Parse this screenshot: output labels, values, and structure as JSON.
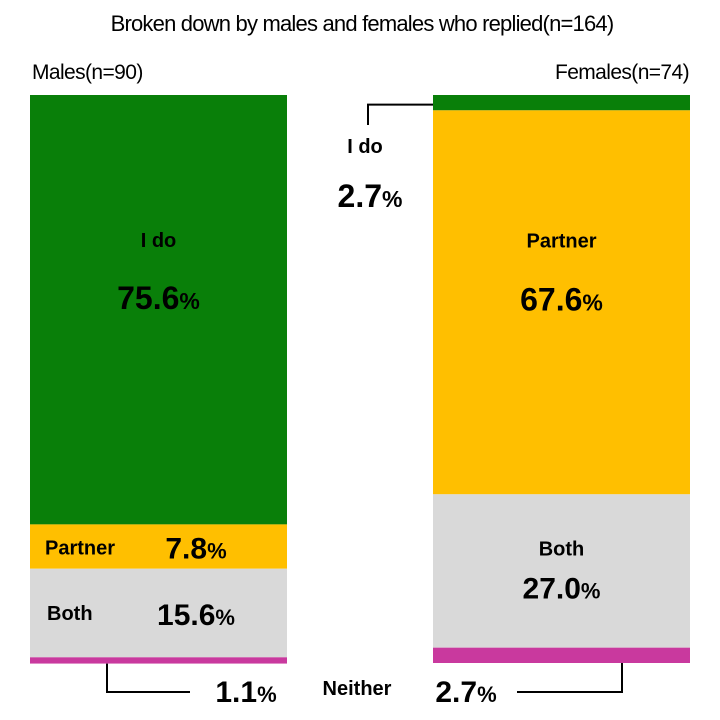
{
  "chart_data": {
    "type": "bar",
    "subtype": "stacked-100-percent",
    "title": "Broken down by males and females who replied",
    "title_n": "(n=164)",
    "categories": [
      "Males",
      "Females"
    ],
    "category_n": [
      "(n=90)",
      "(n=74)"
    ],
    "series": [
      {
        "name": "I do",
        "values": [
          75.6,
          2.7
        ],
        "color": "#097f09"
      },
      {
        "name": "Partner",
        "values": [
          7.8,
          67.6
        ],
        "color": "#ffbf00"
      },
      {
        "name": "Both",
        "values": [
          15.6,
          27.0
        ],
        "color": "#d9d9d9"
      },
      {
        "name": "Neither",
        "values": [
          1.1,
          2.7
        ],
        "color": "#c9399e"
      }
    ],
    "value_labels": {
      "Males": [
        "75.6",
        "7.8",
        "15.6",
        "1.1"
      ],
      "Females": [
        "2.7",
        "67.6",
        "27.0",
        "2.7"
      ]
    },
    "unit": "%",
    "ylim": [
      0,
      100
    ],
    "grid": false,
    "legend": "none"
  }
}
